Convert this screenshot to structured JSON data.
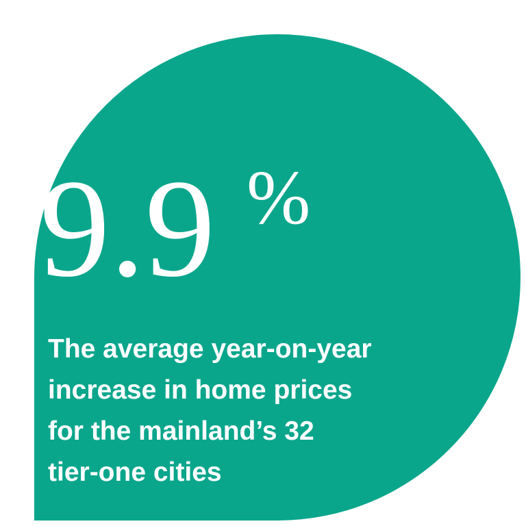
{
  "stat": {
    "value": 9.9,
    "unit": "%"
  },
  "caption": [
    "The average year-on-year",
    "increase in home prices",
    "for the mainland’s 32",
    "tier-one cities"
  ]
}
